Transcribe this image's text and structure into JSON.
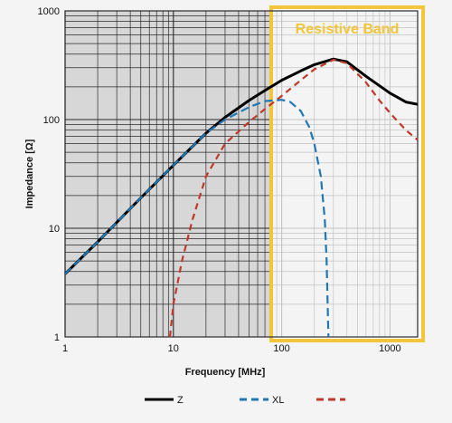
{
  "chart_data": {
    "type": "line",
    "xlabel": "Frequency [MHz]",
    "ylabel": "Impedance [Ω]",
    "x_scale": "log",
    "y_scale": "log",
    "xlim": [
      1,
      1800
    ],
    "ylim": [
      1,
      1000
    ],
    "x_ticks": [
      {
        "value": 1,
        "label": "1"
      },
      {
        "value": 10,
        "label": "10"
      },
      {
        "value": 100,
        "label": "100"
      },
      {
        "value": 1000,
        "label": "1000"
      }
    ],
    "y_ticks": [
      {
        "value": 1,
        "label": "1"
      },
      {
        "value": 10,
        "label": "10"
      },
      {
        "value": 100,
        "label": "100"
      },
      {
        "value": 1000,
        "label": "1000"
      }
    ],
    "grid": true,
    "legend_position": "bottom",
    "series": [
      {
        "name": "Z",
        "color": "#000000",
        "style": "solid",
        "points": [
          [
            1,
            3.8
          ],
          [
            2,
            7.5
          ],
          [
            5,
            19
          ],
          [
            10,
            38
          ],
          [
            20,
            75
          ],
          [
            30,
            105
          ],
          [
            50,
            150
          ],
          [
            70,
            185
          ],
          [
            100,
            230
          ],
          [
            150,
            280
          ],
          [
            200,
            320
          ],
          [
            300,
            360
          ],
          [
            400,
            340
          ],
          [
            600,
            250
          ],
          [
            1000,
            175
          ],
          [
            1400,
            145
          ],
          [
            1800,
            138
          ]
        ]
      },
      {
        "name": "XL",
        "color": "#1f77b4",
        "style": "dashed",
        "points": [
          [
            1,
            3.8
          ],
          [
            2,
            7.5
          ],
          [
            5,
            19
          ],
          [
            10,
            38
          ],
          [
            20,
            75
          ],
          [
            30,
            100
          ],
          [
            50,
            130
          ],
          [
            70,
            148
          ],
          [
            100,
            152
          ],
          [
            120,
            145
          ],
          [
            150,
            120
          ],
          [
            180,
            85
          ],
          [
            200,
            60
          ],
          [
            230,
            30
          ],
          [
            250,
            12
          ],
          [
            260,
            5
          ],
          [
            270,
            1
          ]
        ]
      },
      {
        "name": "",
        "color": "#c0392b",
        "style": "dashed",
        "points": [
          [
            9.3,
            1
          ],
          [
            10,
            2
          ],
          [
            12,
            5
          ],
          [
            15,
            12
          ],
          [
            20,
            30
          ],
          [
            30,
            60
          ],
          [
            50,
            95
          ],
          [
            70,
            125
          ],
          [
            100,
            165
          ],
          [
            150,
            230
          ],
          [
            200,
            290
          ],
          [
            300,
            355
          ],
          [
            400,
            330
          ],
          [
            600,
            220
          ],
          [
            800,
            150
          ],
          [
            1000,
            115
          ],
          [
            1400,
            80
          ],
          [
            1800,
            65
          ]
        ]
      }
    ],
    "annotation": {
      "label": "Resistive Band",
      "x_start": 80,
      "x_end": 1800,
      "color": "#f2c63b"
    }
  }
}
